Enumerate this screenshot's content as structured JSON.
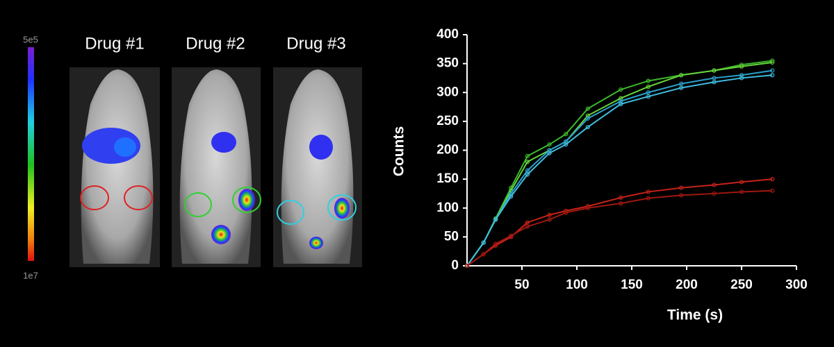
{
  "panels": {
    "labels": [
      "Drug #1",
      "Drug #2",
      "Drug #3"
    ]
  },
  "colorbar": {
    "top": "5e5",
    "bottom": "1e7"
  },
  "chart_data": {
    "type": "line",
    "xlabel": "Time (s)",
    "ylabel": "Counts",
    "x": [
      0,
      15,
      26,
      40,
      55,
      75,
      90,
      110,
      140,
      165,
      195,
      225,
      250,
      278
    ],
    "series": [
      {
        "color": "#3cb82c",
        "values": [
          0,
          40,
          82,
          135,
          190,
          210,
          228,
          272,
          305,
          320,
          330,
          338,
          348,
          355
        ]
      },
      {
        "color": "#66d43a",
        "values": [
          0,
          40,
          80,
          130,
          180,
          200,
          215,
          260,
          290,
          310,
          330,
          338,
          345,
          352
        ]
      },
      {
        "color": "#2aa0cc",
        "values": [
          0,
          40,
          80,
          125,
          165,
          200,
          215,
          255,
          285,
          300,
          315,
          325,
          330,
          338
        ]
      },
      {
        "color": "#40bde0",
        "values": [
          0,
          40,
          80,
          120,
          158,
          195,
          210,
          240,
          280,
          293,
          308,
          318,
          325,
          330
        ]
      },
      {
        "color": "#c8221a",
        "values": [
          0,
          20,
          35,
          50,
          75,
          88,
          95,
          103,
          118,
          128,
          135,
          140,
          145,
          150
        ]
      },
      {
        "color": "#a0180f",
        "values": [
          0,
          20,
          38,
          52,
          68,
          80,
          92,
          100,
          108,
          117,
          122,
          125,
          128,
          130
        ]
      }
    ],
    "xlim": [
      0,
      300
    ],
    "ylim": [
      0,
      400
    ],
    "xticks": [
      50,
      100,
      150,
      200,
      250,
      300
    ],
    "yticks": [
      0,
      50,
      100,
      150,
      200,
      250,
      300,
      350,
      400
    ]
  }
}
